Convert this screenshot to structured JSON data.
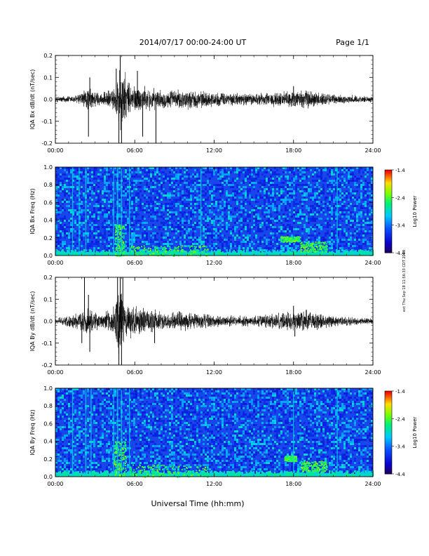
{
  "header": {
    "title": "2014/07/17  00:00-24:00 UT",
    "page": "Page 1/1",
    "side_note": "ext Thu Sep 18 11:56:33 CDT 2019"
  },
  "footer": {
    "xlabel": "Universal Time (hh:mm)"
  },
  "chart_data": [
    {
      "type": "line",
      "ylabel": "IQA Bx dB/dt (nT/sec)",
      "xlim": [
        "00:00",
        "24:00"
      ],
      "xticks": [
        "00:00",
        "06:00",
        "12:00",
        "18:00",
        "24:00"
      ],
      "ylim": [
        -0.2,
        0.2
      ],
      "yticks": [
        "0.2",
        "0.1",
        "0.0",
        "-0.1",
        "-0.2"
      ],
      "envelope": [
        {
          "x": 0.0,
          "amp": 0.015
        },
        {
          "x": 1.5,
          "amp": 0.02
        },
        {
          "x": 2.5,
          "amp": 0.06
        },
        {
          "x": 3.5,
          "amp": 0.03
        },
        {
          "x": 4.5,
          "amp": 0.06
        },
        {
          "x": 4.9,
          "amp": 0.2
        },
        {
          "x": 5.5,
          "amp": 0.09
        },
        {
          "x": 6.2,
          "amp": 0.07
        },
        {
          "x": 8.0,
          "amp": 0.045
        },
        {
          "x": 10.0,
          "amp": 0.05
        },
        {
          "x": 12.0,
          "amp": 0.035
        },
        {
          "x": 15.0,
          "amp": 0.03
        },
        {
          "x": 17.5,
          "amp": 0.04
        },
        {
          "x": 19.0,
          "amp": 0.05
        },
        {
          "x": 21.0,
          "amp": 0.025
        },
        {
          "x": 24.0,
          "amp": 0.015
        }
      ],
      "spikes": [
        {
          "x": 2.5,
          "y": -0.17
        },
        {
          "x": 2.6,
          "y": 0.1
        },
        {
          "x": 4.6,
          "y": 0.14
        },
        {
          "x": 4.8,
          "y": -0.2
        },
        {
          "x": 4.9,
          "y": 0.2
        },
        {
          "x": 5.0,
          "y": -0.2
        },
        {
          "x": 6.2,
          "y": 0.13
        },
        {
          "x": 6.6,
          "y": -0.17
        },
        {
          "x": 7.6,
          "y": -0.2
        },
        {
          "x": 18.0,
          "y": 0.06
        }
      ]
    },
    {
      "type": "heatmap",
      "ylabel": "IQA Bx Freq (Hz)",
      "xlim": [
        "00:00",
        "24:00"
      ],
      "xticks": [
        "00:00",
        "06:00",
        "12:00",
        "18:00",
        "24:00"
      ],
      "ylim": [
        0.0,
        1.0
      ],
      "yticks": [
        "1.0",
        "0.8",
        "0.6",
        "0.4",
        "0.2",
        "0.0"
      ],
      "colorbar": {
        "label": "Log10 Power",
        "range": [
          -4.4,
          -1.4
        ],
        "ticks": [
          "-1.4",
          "-2.4",
          "-3.4",
          "-4.4"
        ]
      },
      "vertical_lines": [
        1.3,
        1.8,
        2.3,
        4.4,
        4.7,
        5.0,
        5.6,
        11.0,
        21.3
      ],
      "enhancements": [
        {
          "x0": 4.5,
          "x1": 5.2,
          "y0": 0.0,
          "y1": 0.35
        },
        {
          "x0": 5.6,
          "x1": 11.5,
          "y0": 0.0,
          "y1": 0.12
        },
        {
          "x0": 17.0,
          "x1": 18.5,
          "y0": 0.16,
          "y1": 0.22
        },
        {
          "x0": 18.5,
          "x1": 20.5,
          "y0": 0.04,
          "y1": 0.16
        }
      ]
    },
    {
      "type": "line",
      "ylabel": "IQA By dB/dt (nT/sec)",
      "xlim": [
        "00:00",
        "24:00"
      ],
      "xticks": [
        "00:00",
        "06:00",
        "12:00",
        "18:00",
        "24:00"
      ],
      "ylim": [
        -0.2,
        0.2
      ],
      "yticks": [
        "0.2",
        "0.1",
        "0.0",
        "-0.1",
        "-0.2"
      ],
      "envelope": [
        {
          "x": 0.0,
          "amp": 0.015
        },
        {
          "x": 1.5,
          "amp": 0.04
        },
        {
          "x": 2.5,
          "amp": 0.07
        },
        {
          "x": 3.5,
          "amp": 0.03
        },
        {
          "x": 4.5,
          "amp": 0.08
        },
        {
          "x": 4.9,
          "amp": 0.2
        },
        {
          "x": 5.5,
          "amp": 0.09
        },
        {
          "x": 6.2,
          "amp": 0.07
        },
        {
          "x": 8.0,
          "amp": 0.05
        },
        {
          "x": 10.0,
          "amp": 0.05
        },
        {
          "x": 12.0,
          "amp": 0.03
        },
        {
          "x": 15.0,
          "amp": 0.025
        },
        {
          "x": 17.5,
          "amp": 0.05
        },
        {
          "x": 19.0,
          "amp": 0.06
        },
        {
          "x": 21.0,
          "amp": 0.025
        },
        {
          "x": 24.0,
          "amp": 0.015
        }
      ],
      "spikes": [
        {
          "x": 2.0,
          "y": -0.1
        },
        {
          "x": 2.2,
          "y": 0.2
        },
        {
          "x": 2.5,
          "y": 0.12
        },
        {
          "x": 2.6,
          "y": -0.14
        },
        {
          "x": 4.7,
          "y": 0.2
        },
        {
          "x": 4.8,
          "y": -0.2
        },
        {
          "x": 4.9,
          "y": 0.2
        },
        {
          "x": 5.0,
          "y": -0.2
        },
        {
          "x": 5.1,
          "y": 0.2
        },
        {
          "x": 7.5,
          "y": -0.1
        },
        {
          "x": 18.0,
          "y": 0.07
        },
        {
          "x": 18.1,
          "y": -0.07
        }
      ]
    },
    {
      "type": "heatmap",
      "ylabel": "IQA By Freq (Hz)",
      "xlim": [
        "00:00",
        "24:00"
      ],
      "xticks": [
        "00:00",
        "06:00",
        "12:00",
        "18:00",
        "24:00"
      ],
      "ylim": [
        0.0,
        1.0
      ],
      "yticks": [
        "1.0",
        "0.8",
        "0.6",
        "0.4",
        "0.2",
        "0.0"
      ],
      "colorbar": {
        "label": "Log10 Power",
        "range": [
          -4.4,
          -1.4
        ],
        "ticks": [
          "-1.4",
          "-2.4",
          "-3.4",
          "-4.4"
        ]
      },
      "vertical_lines": [
        1.3,
        2.3,
        2.7,
        4.4,
        4.7,
        5.0,
        5.6,
        18.0,
        21.3
      ],
      "enhancements": [
        {
          "x0": 4.4,
          "x1": 5.3,
          "y0": 0.0,
          "y1": 0.4
        },
        {
          "x0": 5.6,
          "x1": 11.5,
          "y0": 0.0,
          "y1": 0.14
        },
        {
          "x0": 17.3,
          "x1": 18.2,
          "y0": 0.18,
          "y1": 0.24
        },
        {
          "x0": 18.5,
          "x1": 20.5,
          "y0": 0.06,
          "y1": 0.18
        }
      ]
    }
  ]
}
